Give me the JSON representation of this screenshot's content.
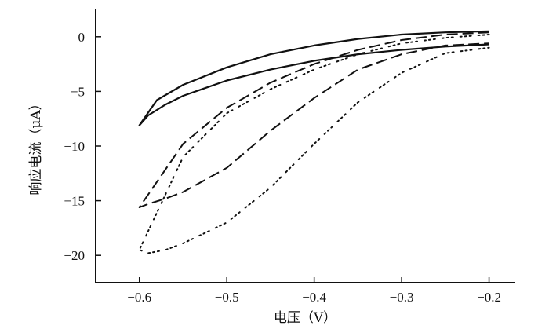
{
  "chart_data": {
    "type": "line",
    "title": "",
    "xlabel": "电压（V）",
    "ylabel": "响应电流（μA）",
    "xlim": [
      -0.65,
      -0.17
    ],
    "ylim": [
      -22.5,
      2.5
    ],
    "xticks": [
      -0.6,
      -0.5,
      -0.4,
      -0.3,
      -0.2
    ],
    "xtick_labels": [
      "−0.6",
      "−0.5",
      "−0.4",
      "−0.3",
      "−0.2"
    ],
    "yticks": [
      0,
      -5,
      -10,
      -15,
      -20
    ],
    "ytick_labels": [
      "0",
      "−5",
      "−10",
      "−15",
      "−20"
    ],
    "grid": false,
    "legend": "none",
    "series": [
      {
        "style": "solid",
        "color": "#111111",
        "x": [
          -0.2,
          -0.25,
          -0.3,
          -0.35,
          -0.4,
          -0.45,
          -0.5,
          -0.55,
          -0.58,
          -0.6,
          -0.59,
          -0.57,
          -0.55,
          -0.5,
          -0.45,
          -0.4,
          -0.35,
          -0.3,
          -0.25,
          -0.2
        ],
        "y": [
          0.5,
          0.4,
          0.2,
          -0.2,
          -0.8,
          -1.6,
          -2.8,
          -4.4,
          -5.8,
          -8.1,
          -7.2,
          -6.2,
          -5.4,
          -4.0,
          -3.0,
          -2.2,
          -1.6,
          -1.2,
          -0.9,
          -0.7
        ]
      },
      {
        "style": "dashed",
        "color": "#111111",
        "x": [
          -0.2,
          -0.25,
          -0.3,
          -0.35,
          -0.4,
          -0.45,
          -0.5,
          -0.55,
          -0.6,
          -0.59,
          -0.57,
          -0.55,
          -0.5,
          -0.45,
          -0.4,
          -0.35,
          -0.3,
          -0.25,
          -0.2
        ],
        "y": [
          0.4,
          0.2,
          -0.3,
          -1.2,
          -2.5,
          -4.2,
          -6.5,
          -9.8,
          -15.6,
          -15.3,
          -14.8,
          -14.2,
          -12.0,
          -8.6,
          -5.6,
          -3.0,
          -1.6,
          -0.8,
          -0.6
        ]
      },
      {
        "style": "dotted",
        "color": "#111111",
        "x": [
          -0.2,
          -0.25,
          -0.3,
          -0.35,
          -0.4,
          -0.45,
          -0.5,
          -0.55,
          -0.6,
          -0.59,
          -0.57,
          -0.55,
          -0.5,
          -0.45,
          -0.4,
          -0.35,
          -0.3,
          -0.25,
          -0.2
        ],
        "y": [
          0.2,
          -0.1,
          -0.6,
          -1.6,
          -3.0,
          -4.8,
          -7.0,
          -11.0,
          -19.5,
          -19.8,
          -19.5,
          -18.9,
          -17.0,
          -13.8,
          -9.8,
          -6.0,
          -3.3,
          -1.5,
          -1.0
        ]
      }
    ]
  }
}
